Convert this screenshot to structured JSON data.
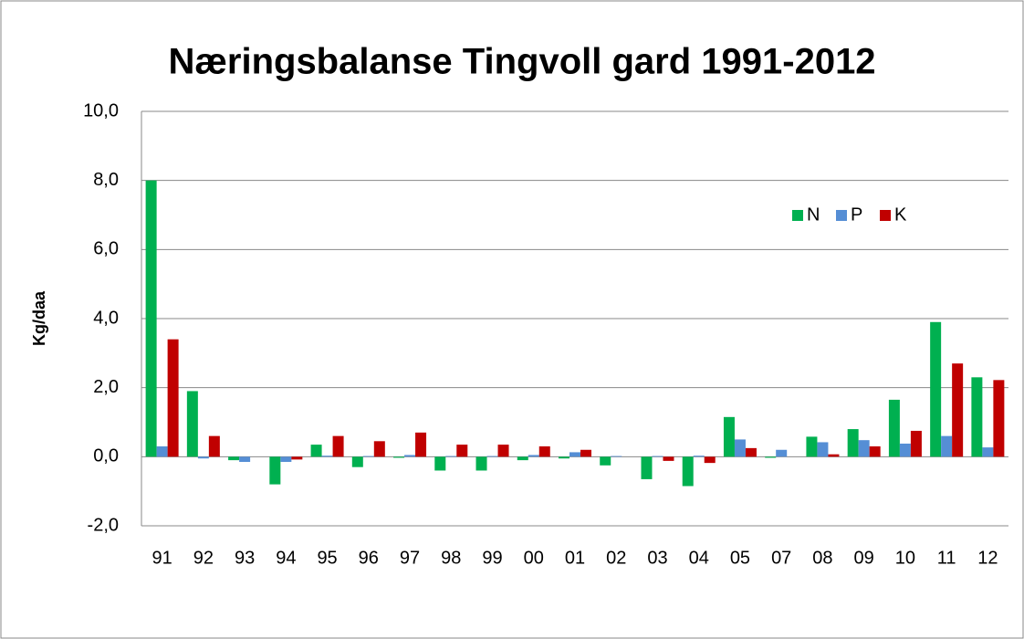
{
  "chart_data": {
    "type": "bar",
    "title": "Næringsbalanse Tingvoll gard 1991-2012",
    "y_label": "Kg/daa",
    "categories": [
      "91",
      "92",
      "93",
      "94",
      "95",
      "96",
      "97",
      "98",
      "99",
      "00",
      "01",
      "02",
      "03",
      "04",
      "05",
      "07",
      "08",
      "09",
      "10",
      "11",
      "12"
    ],
    "series": [
      {
        "name": "N",
        "color": "#00b050",
        "values": [
          8.0,
          1.9,
          -0.1,
          -0.8,
          0.35,
          -0.3,
          -0.03,
          -0.4,
          -0.4,
          -0.1,
          -0.05,
          -0.25,
          -0.65,
          -0.85,
          1.15,
          -0.03,
          0.58,
          0.8,
          1.65,
          3.9,
          2.3
        ]
      },
      {
        "name": "P",
        "color": "#558ed5",
        "values": [
          0.3,
          -0.05,
          -0.15,
          -0.15,
          0.03,
          0.02,
          0.05,
          0.02,
          0.02,
          0.05,
          0.13,
          0.02,
          0.02,
          0.03,
          0.5,
          0.2,
          0.42,
          0.48,
          0.38,
          0.6,
          0.27
        ]
      },
      {
        "name": "K",
        "color": "#c00000",
        "values": [
          3.4,
          0.6,
          0,
          -0.08,
          0.6,
          0.45,
          0.7,
          0.35,
          0.35,
          0.3,
          0.2,
          0,
          -0.12,
          -0.18,
          0.25,
          0,
          0.07,
          0.3,
          0.75,
          2.7,
          2.22
        ]
      }
    ],
    "ylim": [
      -2,
      10
    ],
    "yticks": [
      {
        "value": -2,
        "label": "-2,0"
      },
      {
        "value": 0,
        "label": "0,0"
      },
      {
        "value": 2,
        "label": "2,0"
      },
      {
        "value": 4,
        "label": "4,0"
      },
      {
        "value": 6,
        "label": "6,0"
      },
      {
        "value": 8,
        "label": "8,0"
      },
      {
        "value": 10,
        "label": "10,0"
      }
    ],
    "grid": true,
    "legend": "upper right"
  }
}
